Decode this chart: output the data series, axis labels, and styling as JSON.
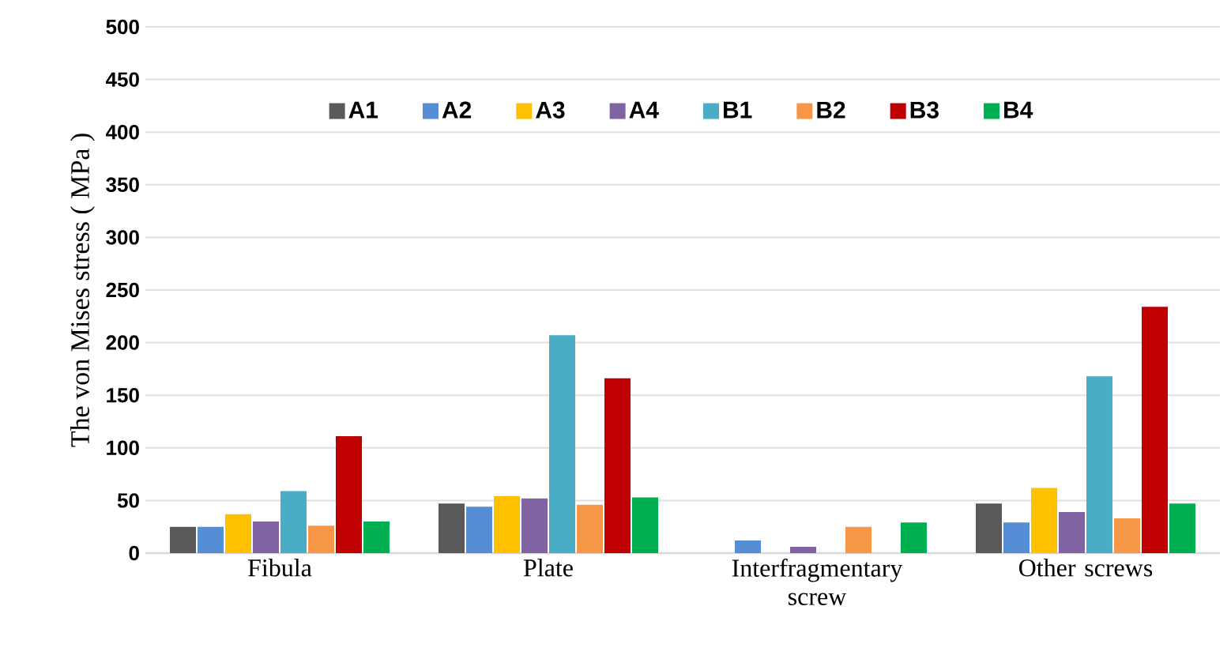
{
  "chart_data": {
    "type": "bar",
    "ylabel": "The von Mises stress ( MPa )",
    "categories": [
      "Fibula",
      "Plate",
      "Interfragmentary screw",
      "Other screws"
    ],
    "series": [
      {
        "name": "A1",
        "color": "#595959",
        "values": [
          25,
          47,
          null,
          47
        ]
      },
      {
        "name": "A2",
        "color": "#558ed5",
        "values": [
          25,
          44,
          12,
          29
        ]
      },
      {
        "name": "A3",
        "color": "#ffc000",
        "values": [
          37,
          54,
          null,
          62
        ]
      },
      {
        "name": "A4",
        "color": "#8064a2",
        "values": [
          30,
          52,
          6,
          39
        ]
      },
      {
        "name": "B1",
        "color": "#4bacc6",
        "values": [
          59,
          207,
          null,
          168
        ]
      },
      {
        "name": "B2",
        "color": "#f79646",
        "values": [
          26,
          46,
          25,
          33
        ]
      },
      {
        "name": "B3",
        "color": "#c00000",
        "values": [
          111,
          166,
          null,
          234
        ]
      },
      {
        "name": "B4",
        "color": "#00b050",
        "values": [
          30,
          53,
          29,
          47
        ]
      }
    ],
    "ylim": [
      0,
      500
    ],
    "yticks": [
      0,
      50,
      100,
      150,
      200,
      250,
      300,
      350,
      400,
      450,
      500
    ],
    "grid": "y",
    "legend": "top"
  }
}
